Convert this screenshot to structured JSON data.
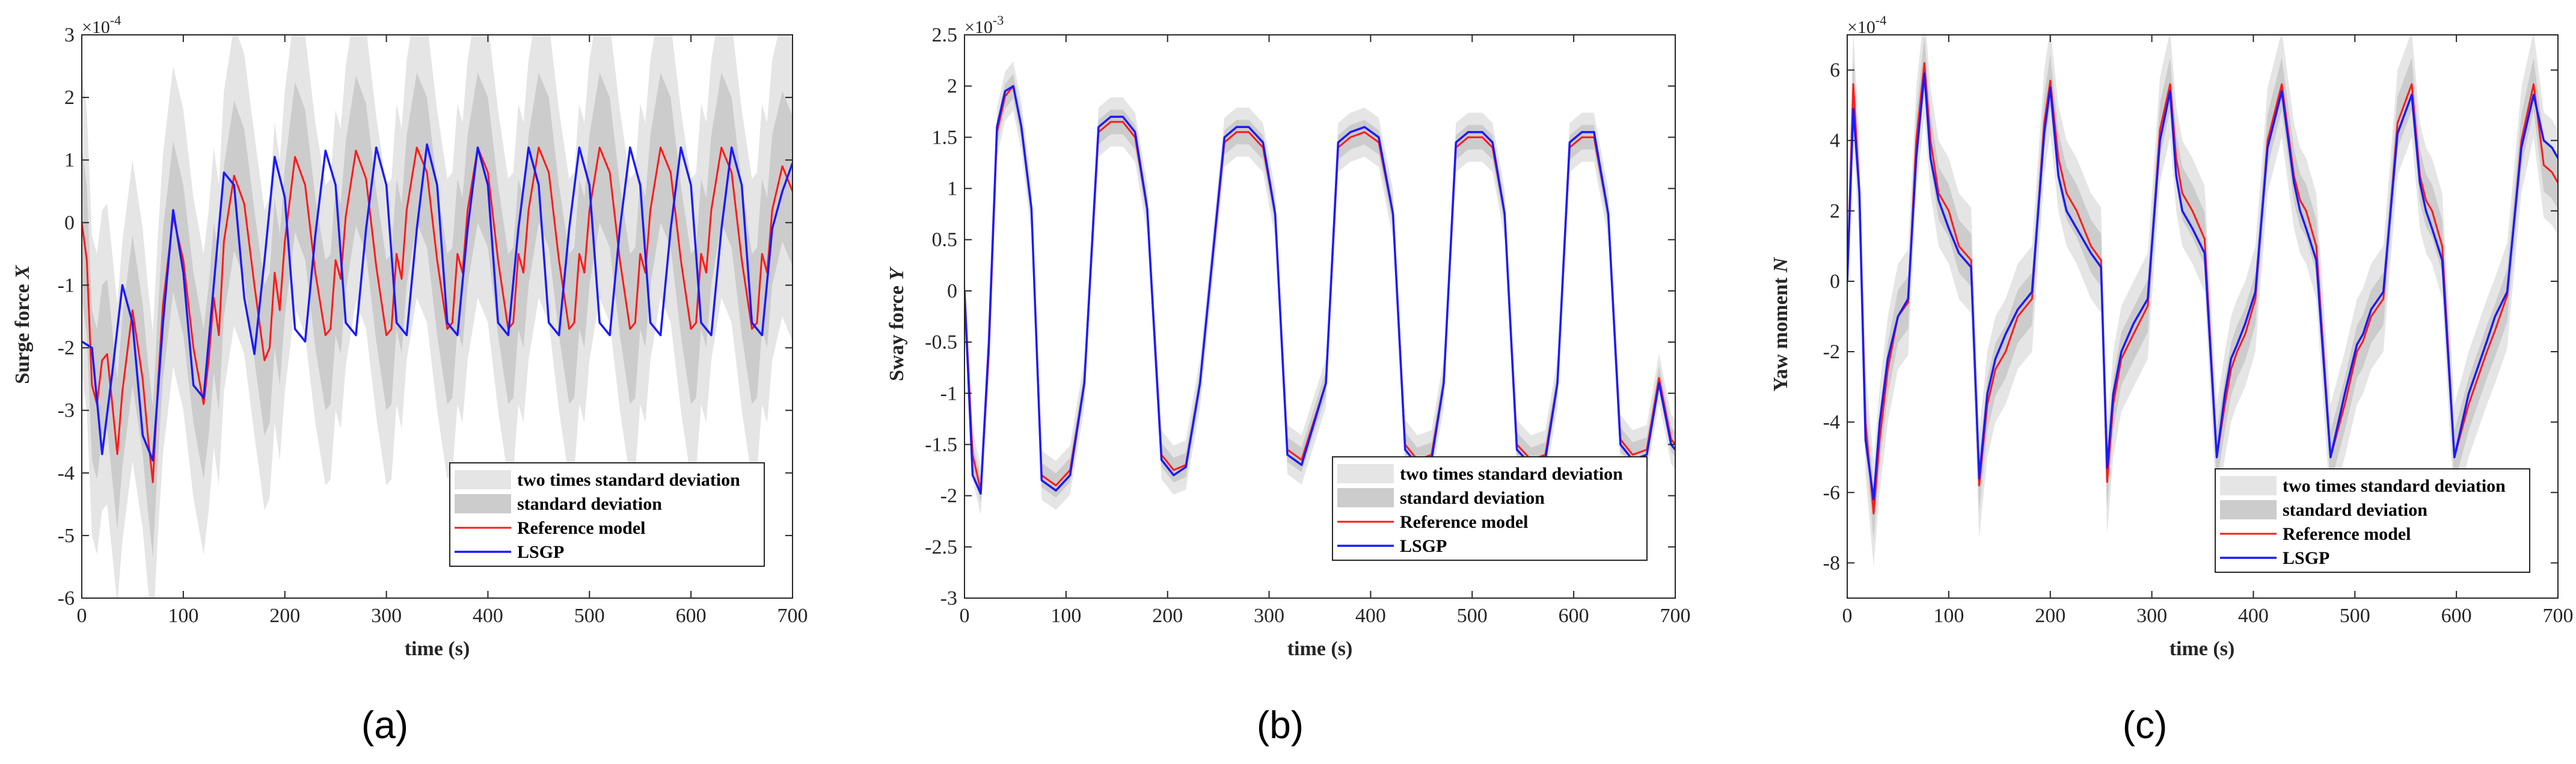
{
  "colors": {
    "band2": "#e5e5e5",
    "band1": "#cccccc",
    "reference": "#ff1a1a",
    "lsgp": "#1a1aff",
    "axis": "#262626"
  },
  "legend_labels": [
    "two times standard deviation",
    "standard deviation",
    "Reference model",
    "LSGP"
  ],
  "captions": [
    "(a)",
    "(b)",
    "(c)"
  ],
  "chart_data": [
    {
      "type": "line",
      "panel": "a",
      "xlabel": "time (s)",
      "ylabel": "Surge force X",
      "ylabel_main": "Surge force ",
      "ylabel_var": "X",
      "exponent_label": "×10",
      "exponent_power": "-4",
      "xlim": [
        0,
        700
      ],
      "ylim": [
        -6,
        3
      ],
      "xticks": [
        0,
        100,
        200,
        300,
        400,
        500,
        600,
        700
      ],
      "yticks": [
        -6,
        -5,
        -4,
        -3,
        -2,
        -1,
        0,
        1,
        2,
        3
      ],
      "xtick_labels": [
        "0",
        "100",
        "200",
        "300",
        "400",
        "500",
        "600",
        "700"
      ],
      "ytick_labels": [
        "-6",
        "-5",
        "-4",
        "-3",
        "-2",
        "-1",
        "0",
        "1",
        "2",
        "3"
      ],
      "legend_position": "bottom-right",
      "series": [
        {
          "name": "Reference model",
          "x": [
            0,
            5,
            10,
            15,
            20,
            25,
            30,
            35,
            40,
            50,
            60,
            65,
            70,
            75,
            80,
            90,
            100,
            110,
            120,
            125,
            130,
            135,
            140,
            150,
            160,
            170,
            180,
            185,
            190,
            195,
            200,
            210,
            220,
            230,
            240,
            245,
            250,
            255,
            260,
            270,
            280,
            290,
            300,
            305,
            310,
            315,
            320,
            330,
            340,
            350,
            360,
            365,
            370,
            375,
            380,
            390,
            400,
            410,
            420,
            425,
            430,
            435,
            440,
            450,
            460,
            470,
            480,
            485,
            490,
            495,
            500,
            510,
            520,
            530,
            540,
            545,
            550,
            555,
            560,
            570,
            580,
            590,
            600,
            605,
            610,
            615,
            620,
            630,
            640,
            650,
            660,
            665,
            670,
            675,
            680,
            690,
            700
          ],
          "y": [
            0,
            -0.6,
            -2.6,
            -2.9,
            -2.2,
            -2.1,
            -2.9,
            -3.7,
            -2.7,
            -1.4,
            -2.5,
            -3.4,
            -4.15,
            -2.6,
            -1.3,
            0.1,
            -0.6,
            -2.0,
            -2.9,
            -2.2,
            -1.2,
            -1.8,
            -0.3,
            0.75,
            0.3,
            -1.0,
            -2.2,
            -2.0,
            -0.8,
            -1.4,
            -0.3,
            1.05,
            0.6,
            -0.8,
            -1.8,
            -1.7,
            -0.6,
            -0.9,
            0.1,
            1.15,
            0.7,
            -0.7,
            -1.8,
            -1.7,
            -0.5,
            -0.9,
            0.2,
            1.2,
            0.8,
            -0.6,
            -1.7,
            -1.6,
            -0.5,
            -0.8,
            0.2,
            1.2,
            0.8,
            -0.6,
            -1.7,
            -1.6,
            -0.5,
            -0.8,
            0.2,
            1.2,
            0.8,
            -0.6,
            -1.7,
            -1.6,
            -0.5,
            -0.8,
            0.2,
            1.2,
            0.8,
            -0.6,
            -1.7,
            -1.6,
            -0.5,
            -0.8,
            0.2,
            1.2,
            0.8,
            -0.6,
            -1.7,
            -1.6,
            -0.5,
            -0.8,
            0.2,
            1.2,
            0.8,
            -0.6,
            -1.7,
            -1.6,
            -0.5,
            -0.8,
            0.2,
            0.9,
            0.5
          ]
        },
        {
          "name": "LSGP",
          "x": [
            0,
            10,
            20,
            30,
            40,
            50,
            60,
            70,
            80,
            90,
            100,
            110,
            120,
            130,
            140,
            150,
            160,
            170,
            180,
            190,
            200,
            210,
            220,
            230,
            240,
            250,
            260,
            270,
            280,
            290,
            300,
            310,
            320,
            330,
            340,
            350,
            360,
            370,
            380,
            390,
            400,
            410,
            420,
            430,
            440,
            450,
            460,
            470,
            480,
            490,
            500,
            510,
            520,
            530,
            540,
            550,
            560,
            570,
            580,
            590,
            600,
            610,
            620,
            630,
            640,
            650,
            660,
            670,
            680,
            690,
            700
          ],
          "y": [
            -1.9,
            -2.0,
            -3.7,
            -2.4,
            -1.0,
            -1.6,
            -3.4,
            -3.8,
            -1.6,
            0.2,
            -0.8,
            -2.6,
            -2.8,
            -1.0,
            0.8,
            0.6,
            -1.2,
            -2.1,
            -0.6,
            1.05,
            0.4,
            -1.7,
            -1.9,
            -0.2,
            1.15,
            0.6,
            -1.6,
            -1.8,
            -0.1,
            1.2,
            0.6,
            -1.6,
            -1.8,
            -0.1,
            1.25,
            0.6,
            -1.6,
            -1.8,
            -0.1,
            1.2,
            0.6,
            -1.6,
            -1.8,
            -0.1,
            1.2,
            0.6,
            -1.6,
            -1.8,
            -0.1,
            1.2,
            0.6,
            -1.6,
            -1.8,
            -0.1,
            1.2,
            0.6,
            -1.6,
            -1.8,
            -0.1,
            1.2,
            0.6,
            -1.6,
            -1.8,
            -0.1,
            1.2,
            0.6,
            -1.6,
            -1.8,
            -0.1,
            0.5,
            0.95
          ]
        }
      ],
      "band_sigma": 1.2
    },
    {
      "type": "line",
      "panel": "b",
      "xlabel": "time (s)",
      "ylabel": "Sway force Y",
      "ylabel_main": "Sway force ",
      "ylabel_var": "Y",
      "exponent_label": "×10",
      "exponent_power": "-3",
      "xlim": [
        0,
        700
      ],
      "ylim": [
        -3,
        2.5
      ],
      "xticks": [
        0,
        100,
        200,
        300,
        400,
        500,
        600,
        700
      ],
      "yticks": [
        -3,
        -2.5,
        -2,
        -1.5,
        -1,
        -0.5,
        0,
        0.5,
        1,
        1.5,
        2,
        2.5
      ],
      "xtick_labels": [
        "0",
        "100",
        "200",
        "300",
        "400",
        "500",
        "600",
        "700"
      ],
      "ytick_labels": [
        "-3",
        "-2.5",
        "-2",
        "-1.5",
        "-1",
        "-0.5",
        "0",
        "0.5",
        "1",
        "1.5",
        "2",
        "2.5"
      ],
      "legend_position": "bottom-right",
      "series": [
        {
          "name": "Reference model",
          "x": [
            0,
            8,
            16,
            24,
            32,
            40,
            48,
            56,
            66,
            76,
            90,
            104,
            118,
            132,
            144,
            156,
            168,
            180,
            194,
            206,
            218,
            232,
            256,
            268,
            280,
            294,
            306,
            318,
            332,
            356,
            368,
            380,
            394,
            408,
            422,
            434,
            446,
            460,
            472,
            484,
            496,
            510,
            520,
            532,
            544,
            558,
            572,
            584,
            596,
            608,
            620,
            634,
            646,
            658,
            672,
            684,
            696,
            700
          ],
          "y": [
            0,
            -1.6,
            -1.95,
            -0.6,
            1.55,
            1.9,
            2.0,
            1.6,
            0.8,
            -1.8,
            -1.9,
            -1.75,
            -0.9,
            1.55,
            1.65,
            1.65,
            1.5,
            0.8,
            -1.6,
            -1.75,
            -1.7,
            -0.9,
            1.45,
            1.55,
            1.55,
            1.4,
            0.75,
            -1.55,
            -1.65,
            -0.9,
            1.4,
            1.5,
            1.55,
            1.45,
            0.75,
            -1.5,
            -1.65,
            -1.6,
            -0.9,
            1.4,
            1.5,
            1.5,
            1.4,
            0.75,
            -1.5,
            -1.65,
            -1.6,
            -0.9,
            1.4,
            1.5,
            1.5,
            0.75,
            -1.45,
            -1.6,
            -1.55,
            -0.85,
            -1.45,
            -1.5
          ]
        },
        {
          "name": "LSGP",
          "x": [
            0,
            8,
            16,
            24,
            32,
            40,
            48,
            56,
            66,
            76,
            90,
            104,
            118,
            132,
            144,
            156,
            168,
            180,
            194,
            206,
            218,
            232,
            256,
            268,
            280,
            294,
            306,
            318,
            332,
            356,
            368,
            380,
            394,
            408,
            422,
            434,
            446,
            460,
            472,
            484,
            496,
            510,
            520,
            532,
            544,
            558,
            572,
            584,
            596,
            608,
            620,
            634,
            646,
            658,
            672,
            684,
            696,
            700
          ],
          "y": [
            0,
            -1.8,
            -1.98,
            -0.5,
            1.6,
            1.95,
            2.0,
            1.6,
            0.8,
            -1.85,
            -1.95,
            -1.8,
            -0.9,
            1.6,
            1.7,
            1.7,
            1.55,
            0.8,
            -1.65,
            -1.8,
            -1.72,
            -0.9,
            1.5,
            1.6,
            1.6,
            1.45,
            0.75,
            -1.6,
            -1.7,
            -0.9,
            1.45,
            1.55,
            1.6,
            1.5,
            0.75,
            -1.55,
            -1.7,
            -1.65,
            -0.9,
            1.45,
            1.55,
            1.55,
            1.45,
            0.75,
            -1.55,
            -1.7,
            -1.65,
            -0.9,
            1.45,
            1.55,
            1.55,
            0.75,
            -1.5,
            -1.65,
            -1.6,
            -0.9,
            -1.5,
            -1.55
          ]
        }
      ],
      "band_sigma": 0.12
    },
    {
      "type": "line",
      "panel": "c",
      "xlabel": "time (s)",
      "ylabel": "Yaw moment N",
      "ylabel_main": "Yaw moment ",
      "ylabel_var": "N",
      "exponent_label": "×10",
      "exponent_power": "-4",
      "xlim": [
        0,
        700
      ],
      "ylim": [
        -9,
        7
      ],
      "xticks": [
        0,
        100,
        200,
        300,
        400,
        500,
        600,
        700
      ],
      "yticks": [
        -8,
        -6,
        -4,
        -2,
        0,
        2,
        4,
        6
      ],
      "xtick_labels": [
        "0",
        "100",
        "200",
        "300",
        "400",
        "500",
        "600",
        "700"
      ],
      "ytick_labels": [
        "-8",
        "-6",
        "-4",
        "-2",
        "0",
        "2",
        "4",
        "6"
      ],
      "legend_position": "bottom-right",
      "series": [
        {
          "name": "Reference model",
          "x": [
            0,
            6,
            12,
            18,
            26,
            32,
            40,
            50,
            60,
            68,
            76,
            82,
            90,
            100,
            110,
            122,
            130,
            138,
            146,
            156,
            168,
            182,
            194,
            200,
            208,
            216,
            226,
            240,
            250,
            256,
            262,
            270,
            282,
            296,
            308,
            318,
            324,
            330,
            340,
            352,
            364,
            372,
            378,
            384,
            392,
            402,
            414,
            428,
            440,
            446,
            452,
            462,
            476,
            490,
            502,
            508,
            516,
            528,
            542,
            556,
            564,
            570,
            576,
            586,
            598,
            612,
            624,
            630,
            638,
            650,
            664,
            676,
            686,
            694,
            700
          ],
          "y": [
            0,
            5.6,
            2.5,
            -4.0,
            -6.6,
            -4.5,
            -2.5,
            -1.0,
            -0.6,
            4.0,
            6.2,
            4.0,
            2.5,
            2.0,
            1.0,
            0.6,
            -5.8,
            -3.5,
            -2.5,
            -2.0,
            -1.0,
            -0.5,
            4.5,
            5.7,
            3.5,
            2.5,
            2.0,
            1.0,
            0.6,
            -5.7,
            -3.5,
            -2.2,
            -1.5,
            -0.7,
            4.3,
            5.6,
            3.5,
            2.5,
            2.0,
            1.2,
            -5.0,
            -3.5,
            -2.5,
            -2.0,
            -1.5,
            -0.5,
            4.0,
            5.6,
            3.0,
            2.3,
            2.0,
            1.0,
            -5.0,
            -3.5,
            -2.0,
            -1.7,
            -1.0,
            -0.5,
            4.5,
            5.6,
            3.0,
            2.3,
            2.0,
            1.0,
            -5.0,
            -3.5,
            -2.5,
            -2.0,
            -1.4,
            -0.4,
            4.0,
            5.6,
            3.3,
            3.1,
            2.8
          ]
        },
        {
          "name": "LSGP",
          "x": [
            0,
            6,
            12,
            18,
            26,
            32,
            40,
            50,
            60,
            68,
            76,
            82,
            90,
            100,
            110,
            122,
            130,
            138,
            146,
            156,
            168,
            182,
            194,
            200,
            208,
            216,
            226,
            240,
            250,
            256,
            262,
            270,
            282,
            296,
            308,
            318,
            324,
            330,
            340,
            352,
            364,
            372,
            378,
            384,
            392,
            402,
            414,
            428,
            440,
            446,
            452,
            462,
            476,
            490,
            502,
            508,
            516,
            528,
            542,
            556,
            564,
            570,
            576,
            586,
            598,
            612,
            624,
            630,
            638,
            650,
            664,
            676,
            686,
            694,
            700
          ],
          "y": [
            0,
            4.9,
            2.5,
            -4.5,
            -6.2,
            -4.0,
            -2.2,
            -1.0,
            -0.5,
            3.5,
            5.9,
            3.5,
            2.3,
            1.5,
            0.8,
            0.4,
            -5.6,
            -3.2,
            -2.2,
            -1.5,
            -0.8,
            -0.3,
            4.2,
            5.5,
            3.0,
            2.0,
            1.5,
            0.8,
            0.4,
            -5.3,
            -3.2,
            -2.0,
            -1.2,
            -0.5,
            4.0,
            5.4,
            3.0,
            2.0,
            1.5,
            0.8,
            -5.0,
            -3.2,
            -2.2,
            -1.8,
            -1.2,
            -0.3,
            3.8,
            5.4,
            2.8,
            2.0,
            1.5,
            0.6,
            -5.0,
            -3.2,
            -1.8,
            -1.5,
            -0.8,
            -0.3,
            4.2,
            5.3,
            2.8,
            2.0,
            1.5,
            0.6,
            -5.0,
            -3.2,
            -2.2,
            -1.7,
            -1.0,
            -0.3,
            3.8,
            5.3,
            4.0,
            3.8,
            3.5
          ]
        }
      ],
      "band_sigma": 0.75
    }
  ]
}
